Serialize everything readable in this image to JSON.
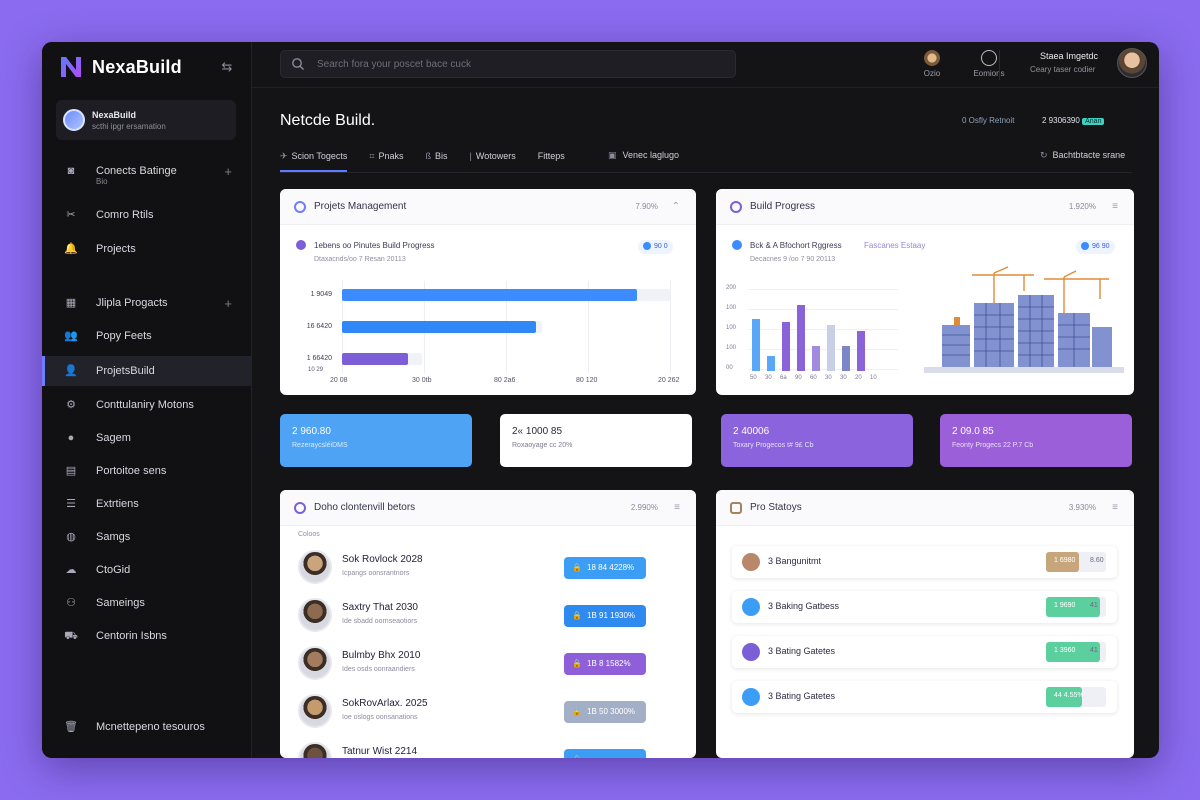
{
  "brand": {
    "name": "NexaBuild"
  },
  "workspace": {
    "title": "NexaBuild",
    "subtitle": "scthi ipgr ersamation"
  },
  "nav": [
    {
      "label": "Conects Batinge",
      "sub": "Bio",
      "icon": "camera-icon",
      "plus": true
    },
    {
      "label": "Comro Rtils",
      "icon": "tools-icon"
    },
    {
      "label": "Projects",
      "icon": "bell-icon"
    },
    {
      "label": "Jlipla Progacts",
      "icon": "grid-icon",
      "plus": true
    },
    {
      "label": "Popy Feets",
      "icon": "users-icon"
    },
    {
      "label": "ProjetsBuild",
      "icon": "user-icon",
      "active": true
    },
    {
      "label": "Conttulaniry Motons",
      "icon": "gear-icon"
    },
    {
      "label": "Sagem",
      "icon": "circle-icon"
    },
    {
      "label": "Portoitoe sens",
      "icon": "doc-icon"
    },
    {
      "label": "Extrtiens",
      "icon": "list-icon"
    },
    {
      "label": "Samgs",
      "icon": "globe-icon"
    },
    {
      "label": "CtoGid",
      "icon": "cloud-icon"
    },
    {
      "label": "Sameings",
      "icon": "people-icon"
    },
    {
      "label": "Centorin Isbns",
      "icon": "cart-icon"
    },
    {
      "label": "Mcnettepeno tesouros",
      "icon": "trash-icon"
    }
  ],
  "search": {
    "placeholder": "Search fora your poscet bace cuck"
  },
  "topbar": {
    "btn1": "Ozio",
    "btn2": "Eomions",
    "user_name": "Staea Imgetdc",
    "user_role": "Ceary taser codier"
  },
  "page": {
    "title": "Netcde Build.",
    "meta1": "0 Osfly Retnoit",
    "meta2": "2 9306390",
    "meta_badge": "Anan"
  },
  "tabs": [
    "Scion Togects",
    "Pnaks",
    "Bis",
    "Wotowers",
    "Fitteps"
  ],
  "tab_icons": [
    "send-icon",
    "hash-icon",
    "b-icon",
    "pipe-icon",
    ""
  ],
  "tab_right": "Venec laglugo",
  "tab_far": "Bachtbtacte srane",
  "projects_card": {
    "title": "Projets Management",
    "pct": "7.90%",
    "subtitle": "1ebens oo Pinutes Build Progress",
    "date": "Dtaxacnds/oo 7 Resan 20113",
    "chip": "90 0",
    "bars": [
      {
        "label": "1 9049",
        "value": 0.9,
        "color": "#3c8cff"
      },
      {
        "label": "16 6420",
        "value": 0.59,
        "color": "#2f88f5"
      },
      {
        "label": "1 66420",
        "value": 0.2,
        "color": "#7c5fd6"
      }
    ],
    "xticks": [
      "20 08",
      "30 0tb",
      "80 2a6",
      "80 120",
      "20 262"
    ],
    "xunit": "10 29"
  },
  "build_card": {
    "title": "Build Progress",
    "pct": "1.920%",
    "subtitle": "Bck & A Bfochort Rggress",
    "tag": "Fascanes Estaay",
    "date": "Decacnes 9 /oo 7 90 20113",
    "chip": "96 90",
    "yticks": [
      "200",
      "100",
      "100",
      "100",
      "00"
    ],
    "xticks": [
      "50",
      "30",
      "6a",
      "90",
      "60",
      "30",
      "30",
      "20",
      "10"
    ],
    "bars": [
      {
        "value": 0.62,
        "color": "#5aa7f7"
      },
      {
        "value": 0.18,
        "color": "#5aa7f7"
      },
      {
        "value": 0.58,
        "color": "#8b63d8"
      },
      {
        "value": 0.78,
        "color": "#8b63d8"
      },
      {
        "value": 0.3,
        "color": "#a18bdf"
      },
      {
        "value": 0.55,
        "color": "#c9cfe6"
      },
      {
        "value": 0.3,
        "color": "#7a86c8"
      },
      {
        "value": 0.48,
        "color": "#8b63d8"
      }
    ]
  },
  "stats": [
    {
      "value": "2 960.80",
      "sub": "RezeraycsléiDMS",
      "color": "#4ea3f5",
      "dark": false
    },
    {
      "value": "2« 1000 85",
      "sub": "Roxaoyage cc 20%",
      "color": "#ffffff",
      "dark": true
    },
    {
      "value": "2 40006",
      "sub": "Toxary Progecos t# 9£ Cb",
      "color": "#8a63dd",
      "dark": false
    },
    {
      "value": "2 09.0 85",
      "sub": "Feonty Progecs 22 P.7 Cb",
      "color": "#9a5fd9",
      "dark": false
    }
  ],
  "members_card": {
    "title": "Doho clontenvill betors",
    "pct": "2.990%",
    "section": "Coloos",
    "members": [
      {
        "name": "Sok Rovlock 2028",
        "sub": "Icpangs oonsrantnors",
        "pill": "18 84 4228%",
        "pill_color": "#3c9df5",
        "avatar": "#c9a47d"
      },
      {
        "name": "Saxtry That 2030",
        "sub": "Ide sbadd oornseaotiors",
        "pill": "1B 91 1930%",
        "pill_color": "#2f8af0",
        "avatar": "#8d6a50"
      },
      {
        "name": "Bulmby Bhx 2010",
        "sub": "Ides osds oonraandiers",
        "pill": "1B 8 1582%",
        "pill_color": "#8f5ed9",
        "avatar": "#a27c5c"
      },
      {
        "name": "SokRovArlax. 2025",
        "sub": "Ioe oslogs oonsanations",
        "pill": "1B 50 3000%",
        "pill_color": "#a3afc6",
        "avatar": "#c59a6c"
      },
      {
        "name": "Tatnur Wist 2214",
        "sub": "",
        "pill": "",
        "pill_color": "#3c9df5",
        "avatar": "#6d5240"
      }
    ]
  },
  "status_card": {
    "title": "Pro Statoys",
    "pct": "3.930%",
    "rows": [
      {
        "name": "3 Bangunitmt",
        "val": "1 6980",
        "extra": "8.60",
        "color": "#c8a67c",
        "icon": "#b9876a",
        "fill": 0.55
      },
      {
        "name": "3 Baking Gatbess",
        "val": "1 9690",
        "extra": "41",
        "color": "#5ccf9f",
        "icon": "#3b9df5",
        "fill": 0.9
      },
      {
        "name": "3 Bating Gatetes",
        "val": "1 3960",
        "extra": "41",
        "color": "#5ccf9f",
        "icon": "#7a5fd6",
        "fill": 0.9
      },
      {
        "name": "3 Bating Gatetes",
        "val": "44 4.55%",
        "extra": "",
        "color": "#5ccf9f",
        "icon": "#3b9df5",
        "fill": 0.6
      }
    ]
  }
}
